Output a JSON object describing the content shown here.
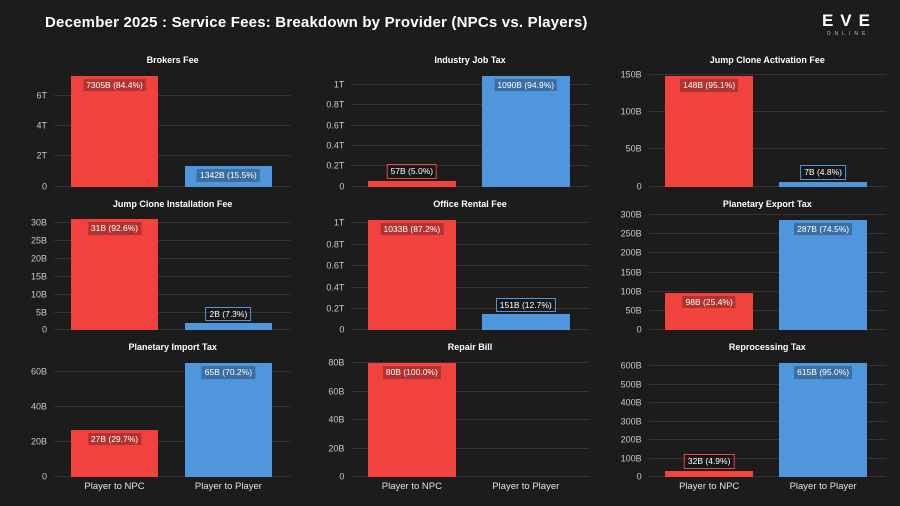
{
  "header": {
    "title": "December 2025 : Service Fees: Breakdown by Provider (NPCs vs. Players)"
  },
  "logo": {
    "word": "EVE",
    "subword": "ONLINE"
  },
  "colors": {
    "background": "#1c1c1c",
    "npc_bar": "#f2423e",
    "player_bar": "#4f96dc",
    "grid": "#323232",
    "title_text": "#ffffff",
    "tick_text": "#c9c9c9",
    "label_text": "#ffffff"
  },
  "categories": [
    "Player to NPC",
    "Player to Player"
  ],
  "chart_data": [
    {
      "type": "bar",
      "title": "Brokers Fee",
      "unit": "B",
      "categories": [
        "Player to NPC",
        "Player to Player"
      ],
      "values": [
        7305,
        1342
      ],
      "bar_labels": [
        "7305B (84.4%)",
        "1342B (15.5%)"
      ],
      "ytick_values": [
        0,
        2000,
        4000,
        6000
      ],
      "ytick_labels": [
        "0",
        "2T",
        "4T",
        "6T"
      ],
      "ymax": 7690,
      "grid": true,
      "legend": false,
      "show_x_labels": false
    },
    {
      "type": "bar",
      "title": "Industry Job Tax",
      "unit": "B",
      "categories": [
        "Player to NPC",
        "Player to Player"
      ],
      "values": [
        57,
        1090
      ],
      "bar_labels": [
        "57B (5.0%)",
        "1090B (94.9%)"
      ],
      "ytick_values": [
        0,
        200,
        400,
        600,
        800,
        1000
      ],
      "ytick_labels": [
        "0",
        "0.2T",
        "0.4T",
        "0.6T",
        "0.8T",
        "1T"
      ],
      "ymax": 1147,
      "grid": true,
      "legend": false,
      "show_x_labels": false
    },
    {
      "type": "bar",
      "title": "Jump Clone Activation Fee",
      "unit": "B",
      "categories": [
        "Player to NPC",
        "Player to Player"
      ],
      "values": [
        148,
        7
      ],
      "bar_labels": [
        "148B (95.1%)",
        "7B (4.8%)"
      ],
      "ytick_values": [
        0,
        50,
        100,
        150
      ],
      "ytick_labels": [
        "0",
        "50B",
        "100B",
        "150B"
      ],
      "ymax": 156,
      "grid": true,
      "legend": false,
      "show_x_labels": false
    },
    {
      "type": "bar",
      "title": "Jump Clone Installation Fee",
      "unit": "B",
      "categories": [
        "Player to NPC",
        "Player to Player"
      ],
      "values": [
        31,
        2
      ],
      "bar_labels": [
        "31B (92.6%)",
        "2B (7.3%)"
      ],
      "ytick_values": [
        0,
        5,
        10,
        15,
        20,
        25,
        30
      ],
      "ytick_labels": [
        "0",
        "5B",
        "10B",
        "15B",
        "20B",
        "25B",
        "30B"
      ],
      "ymax": 32.6,
      "grid": true,
      "legend": false,
      "show_x_labels": false
    },
    {
      "type": "bar",
      "title": "Office Rental Fee",
      "unit": "B",
      "categories": [
        "Player to NPC",
        "Player to Player"
      ],
      "values": [
        1033,
        151
      ],
      "bar_labels": [
        "1033B (87.2%)",
        "151B (12.7%)"
      ],
      "ytick_values": [
        0,
        200,
        400,
        600,
        800,
        1000
      ],
      "ytick_labels": [
        "0",
        "0.2T",
        "0.4T",
        "0.6T",
        "0.8T",
        "1T"
      ],
      "ymax": 1087,
      "grid": true,
      "legend": false,
      "show_x_labels": false
    },
    {
      "type": "bar",
      "title": "Planetary Export Tax",
      "unit": "B",
      "categories": [
        "Player to NPC",
        "Player to Player"
      ],
      "values": [
        98,
        287
      ],
      "bar_labels": [
        "98B (25.4%)",
        "287B (74.5%)"
      ],
      "ytick_values": [
        0,
        50,
        100,
        150,
        200,
        250,
        300
      ],
      "ytick_labels": [
        "0",
        "50B",
        "100B",
        "150B",
        "200B",
        "250B",
        "300B"
      ],
      "ymax": 302,
      "grid": true,
      "legend": false,
      "show_x_labels": false
    },
    {
      "type": "bar",
      "title": "Planetary Import Tax",
      "unit": "B",
      "categories": [
        "Player to NPC",
        "Player to Player"
      ],
      "values": [
        27,
        65
      ],
      "bar_labels": [
        "27B (29.7%)",
        "65B (70.2%)"
      ],
      "ytick_values": [
        0,
        20,
        40,
        60
      ],
      "ytick_labels": [
        "0",
        "20B",
        "40B",
        "60B"
      ],
      "ymax": 68.4,
      "grid": true,
      "legend": false,
      "show_x_labels": true
    },
    {
      "type": "bar",
      "title": "Repair Bill",
      "unit": "B",
      "categories": [
        "Player to NPC",
        "Player to Player"
      ],
      "values": [
        80,
        0
      ],
      "bar_labels": [
        "80B (100.0%)",
        null
      ],
      "ytick_values": [
        0,
        20,
        40,
        60,
        80
      ],
      "ytick_labels": [
        "0",
        "20B",
        "40B",
        "60B",
        "80B"
      ],
      "ymax": 84.2,
      "grid": true,
      "legend": false,
      "show_x_labels": true
    },
    {
      "type": "bar",
      "title": "Reprocessing Tax",
      "unit": "B",
      "categories": [
        "Player to NPC",
        "Player to Player"
      ],
      "values": [
        32,
        615
      ],
      "bar_labels": [
        "32B (4.9%)",
        "615B (95.0%)"
      ],
      "ytick_values": [
        0,
        100,
        200,
        300,
        400,
        500,
        600
      ],
      "ytick_labels": [
        "0",
        "100B",
        "200B",
        "300B",
        "400B",
        "500B",
        "600B"
      ],
      "ymax": 647,
      "grid": true,
      "legend": false,
      "show_x_labels": true
    }
  ]
}
